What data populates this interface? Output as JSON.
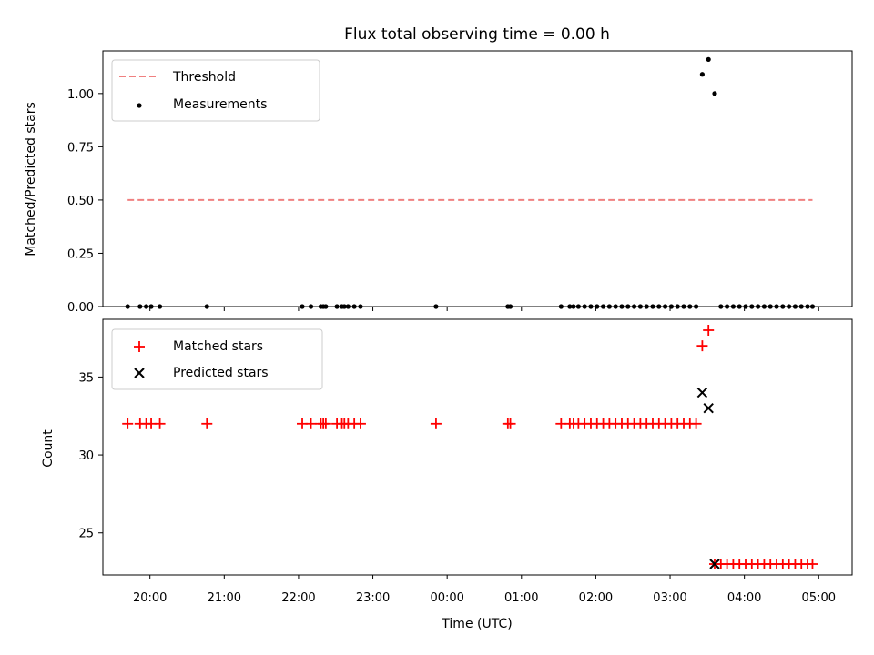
{
  "chart_data": [
    {
      "type": "scatter",
      "title": "Flux total observing time = 0.00 h",
      "ylabel": "Matched/Predicted stars",
      "xlabel": "",
      "xlim": [
        "19:22",
        "05:27"
      ],
      "ylim": [
        0,
        1.2
      ],
      "yticks": [
        "0.00",
        "0.25",
        "0.50",
        "0.75",
        "1.00"
      ],
      "legend_position": "top-left",
      "legend": [
        "Threshold",
        "Measurements"
      ],
      "series": [
        {
          "name": "Threshold",
          "style": "dashed-line",
          "color": "#f08080",
          "x": [
            "19:42",
            "04:55"
          ],
          "y": [
            0.5,
            0.5
          ]
        },
        {
          "name": "Measurements",
          "style": "point",
          "color": "#000000",
          "x": [
            "19:42",
            "19:52",
            "19:57",
            "20:01",
            "20:08",
            "20:46",
            "22:03",
            "22:10",
            "22:18",
            "22:20",
            "22:22",
            "22:31",
            "22:35",
            "22:37",
            "22:40",
            "22:45",
            "22:50",
            "23:51",
            "00:49",
            "00:51",
            "01:32",
            "01:39",
            "01:42",
            "01:46",
            "01:51",
            "01:56",
            "02:01",
            "02:06",
            "02:11",
            "02:16",
            "02:21",
            "02:26",
            "02:31",
            "02:36",
            "02:41",
            "02:46",
            "02:51",
            "02:56",
            "03:01",
            "03:06",
            "03:11",
            "03:16",
            "03:21",
            "03:26",
            "03:31",
            "03:36",
            "03:41",
            "03:46",
            "03:51",
            "03:56",
            "04:01",
            "04:06",
            "04:11",
            "04:16",
            "04:21",
            "04:26",
            "04:31",
            "04:36",
            "04:41",
            "04:46",
            "04:51",
            "04:55"
          ],
          "y": [
            0,
            0,
            0,
            0,
            0,
            0,
            0,
            0,
            0,
            0,
            0,
            0,
            0,
            0,
            0,
            0,
            0,
            0,
            0,
            0,
            0,
            0,
            0,
            0,
            0,
            0,
            0,
            0,
            0,
            0,
            0,
            0,
            0,
            0,
            0,
            0,
            0,
            0,
            0,
            0,
            0,
            0,
            0,
            1.09,
            1.16,
            1.0,
            0,
            0,
            0,
            0,
            0,
            0,
            0,
            0,
            0,
            0,
            0,
            0,
            0,
            0,
            0,
            0
          ]
        }
      ]
    },
    {
      "type": "scatter",
      "title": "",
      "xlabel": "Time (UTC)",
      "ylabel": "Count",
      "xlim": [
        "19:22",
        "05:27"
      ],
      "ylim": [
        22.3,
        38.7
      ],
      "xticks": [
        "20:00",
        "21:00",
        "22:00",
        "23:00",
        "00:00",
        "01:00",
        "02:00",
        "03:00",
        "04:00",
        "05:00"
      ],
      "yticks": [
        "25",
        "30",
        "35"
      ],
      "legend_position": "top-left",
      "legend": [
        "Matched stars",
        "Predicted stars"
      ],
      "series": [
        {
          "name": "Matched stars",
          "marker": "plus",
          "color": "#ff0000",
          "x": [
            "19:42",
            "19:52",
            "19:57",
            "20:01",
            "20:08",
            "20:46",
            "22:03",
            "22:10",
            "22:18",
            "22:20",
            "22:22",
            "22:31",
            "22:35",
            "22:37",
            "22:40",
            "22:45",
            "22:50",
            "23:51",
            "00:49",
            "00:51",
            "01:32",
            "01:39",
            "01:42",
            "01:46",
            "01:51",
            "01:56",
            "02:01",
            "02:06",
            "02:11",
            "02:16",
            "02:21",
            "02:26",
            "02:31",
            "02:36",
            "02:41",
            "02:46",
            "02:51",
            "02:56",
            "03:01",
            "03:06",
            "03:11",
            "03:16",
            "03:21",
            "03:26",
            "03:31",
            "03:36",
            "03:41",
            "03:46",
            "03:51",
            "03:56",
            "04:01",
            "04:06",
            "04:11",
            "04:16",
            "04:21",
            "04:26",
            "04:31",
            "04:36",
            "04:41",
            "04:46",
            "04:51",
            "04:55"
          ],
          "y": [
            32,
            32,
            32,
            32,
            32,
            32,
            32,
            32,
            32,
            32,
            32,
            32,
            32,
            32,
            32,
            32,
            32,
            32,
            32,
            32,
            32,
            32,
            32,
            32,
            32,
            32,
            32,
            32,
            32,
            32,
            32,
            32,
            32,
            32,
            32,
            32,
            32,
            32,
            32,
            32,
            32,
            32,
            32,
            37,
            38,
            23,
            23,
            23,
            23,
            23,
            23,
            23,
            23,
            23,
            23,
            23,
            23,
            23,
            23,
            23,
            23,
            23
          ]
        },
        {
          "name": "Predicted stars",
          "marker": "x",
          "color": "#000000",
          "x": [
            "03:26",
            "03:31",
            "03:36"
          ],
          "y": [
            34,
            33,
            23
          ]
        }
      ]
    }
  ]
}
